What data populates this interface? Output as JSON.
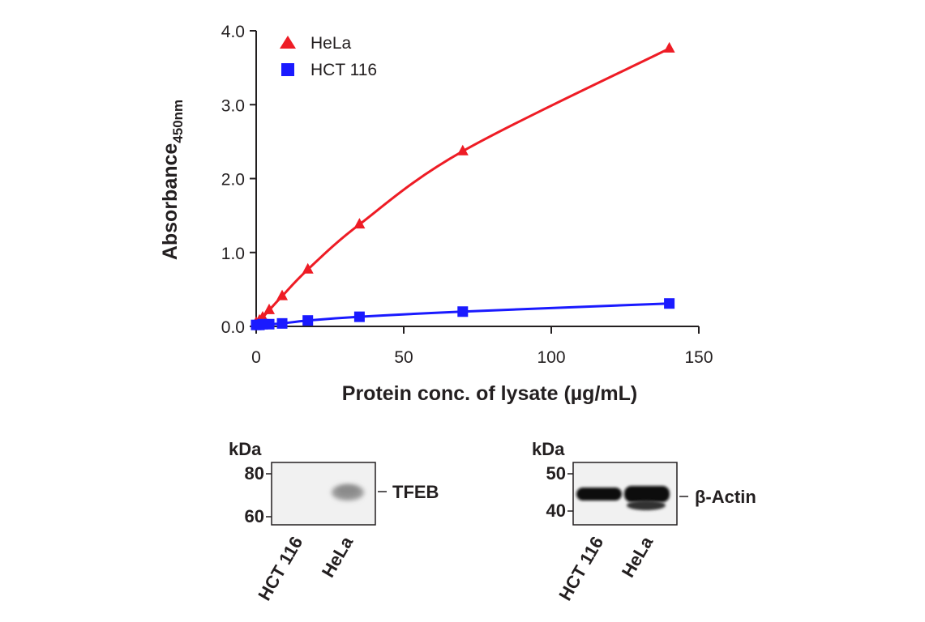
{
  "chart_data": {
    "type": "line",
    "xlabel": "Protein conc. of lysate (µg/mL)",
    "ylabel": "Absorbance",
    "ylabel_sub": "450nm",
    "xlim": [
      0,
      150
    ],
    "ylim": [
      0,
      4.0
    ],
    "xticks": [
      0,
      50,
      100,
      150
    ],
    "yticks": [
      "0.0",
      "1.0",
      "2.0",
      "3.0",
      "4.0"
    ],
    "legend_position": "top-left",
    "grid": false,
    "series": [
      {
        "name": "HeLa",
        "color": "#ee1c25",
        "marker": "triangle",
        "x": [
          0,
          1.1,
          2.2,
          4.4,
          8.8,
          17.5,
          35,
          70,
          140
        ],
        "y": [
          0.05,
          0.08,
          0.12,
          0.22,
          0.41,
          0.77,
          1.38,
          2.37,
          3.76
        ]
      },
      {
        "name": "HCT 116",
        "color": "#1a1aff",
        "marker": "square",
        "x": [
          0,
          1.1,
          2.2,
          4.4,
          8.8,
          17.5,
          35,
          70,
          140
        ],
        "y": [
          0.02,
          0.02,
          0.03,
          0.03,
          0.04,
          0.08,
          0.13,
          0.2,
          0.31
        ]
      }
    ]
  },
  "blots": {
    "left": {
      "unit": "kDa",
      "markers": [
        "80",
        "60"
      ],
      "target": "TFEB",
      "lanes": [
        "HCT 116",
        "HeLa"
      ]
    },
    "right": {
      "unit": "kDa",
      "markers": [
        "50",
        "40"
      ],
      "target": "β-Actin",
      "lanes": [
        "HCT 116",
        "HeLa"
      ]
    }
  }
}
